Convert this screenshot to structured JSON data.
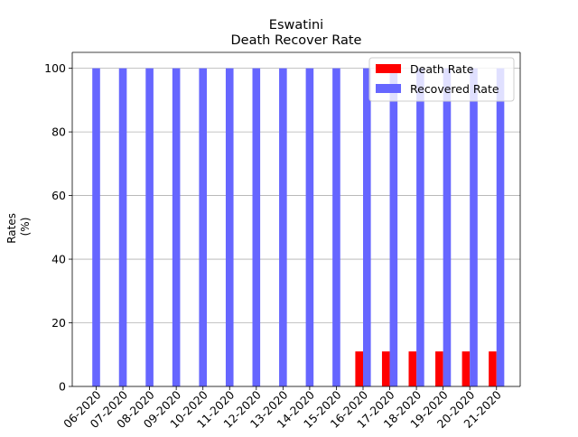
{
  "chart_data": {
    "type": "bar",
    "title": "Eswatini",
    "subtitle": "Death Recover Rate",
    "xlabel": "",
    "ylabel": "Rates\n(%)",
    "ylim": [
      0,
      105
    ],
    "yticks": [
      0,
      20,
      40,
      60,
      80,
      100
    ],
    "grid": "horizontal",
    "legend_position": "top-right",
    "categories": [
      "06-2020",
      "07-2020",
      "08-2020",
      "09-2020",
      "10-2020",
      "11-2020",
      "12-2020",
      "13-2020",
      "14-2020",
      "15-2020",
      "16-2020",
      "17-2020",
      "18-2020",
      "19-2020",
      "20-2020",
      "21-2020"
    ],
    "series": [
      {
        "name": "Death Rate",
        "color": "#ff0000",
        "values": [
          0,
          0,
          0,
          0,
          0,
          0,
          0,
          0,
          0,
          0,
          11,
          11,
          11,
          11,
          11,
          11
        ]
      },
      {
        "name": "Recovered Rate",
        "color": "#6666ff",
        "values": [
          100,
          100,
          100,
          100,
          100,
          100,
          100,
          100,
          100,
          100,
          100,
          100,
          100,
          100,
          100,
          100
        ]
      }
    ]
  }
}
